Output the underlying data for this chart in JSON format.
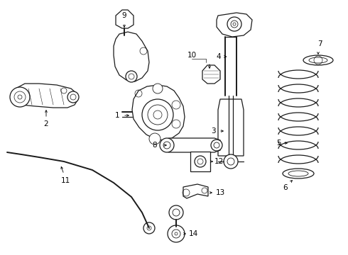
{
  "bg_color": "#ffffff",
  "line_color": "#1a1a1a",
  "label_color": "#000000",
  "lw": 0.9,
  "fs": 7.5,
  "components": {
    "fig_w": 4.9,
    "fig_h": 3.6,
    "dpi": 100
  }
}
